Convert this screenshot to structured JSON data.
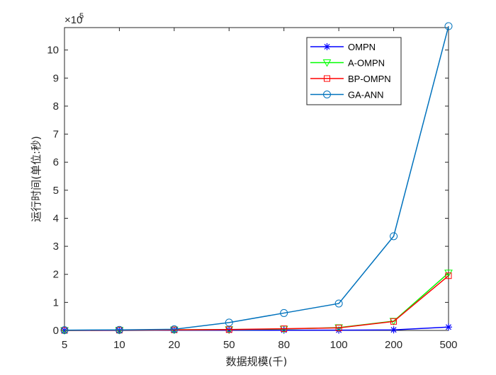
{
  "chart_data": {
    "type": "line",
    "title": "",
    "xlabel": "数据规模(千)",
    "ylabel": "运行时间(单位:秒)",
    "exponent_label": "×10",
    "exponent_power": "5",
    "categories": [
      "5",
      "10",
      "20",
      "50",
      "80",
      "100",
      "200",
      "500"
    ],
    "ylim": [
      0,
      10.8
    ],
    "yticks": [
      "0",
      "1",
      "2",
      "3",
      "4",
      "5",
      "6",
      "7",
      "8",
      "9",
      "10"
    ],
    "y_scale_note": "values in units of 10^5 seconds",
    "grid": false,
    "legend_position": "top-right",
    "series": [
      {
        "name": "OMPN",
        "color": "#0000ff",
        "marker": "star",
        "values": [
          0.0,
          0.0,
          0.01,
          0.01,
          0.01,
          0.01,
          0.02,
          0.12
        ]
      },
      {
        "name": "A-OMPN",
        "color": "#00ff00",
        "marker": "triangle-down",
        "values": [
          0.0,
          0.01,
          0.02,
          0.03,
          0.05,
          0.1,
          0.33,
          2.05
        ]
      },
      {
        "name": "BP-OMPN",
        "color": "#ff0000",
        "marker": "square",
        "values": [
          0.0,
          0.01,
          0.02,
          0.03,
          0.06,
          0.09,
          0.32,
          1.95
        ]
      },
      {
        "name": "GA-ANN",
        "color": "#0072bd",
        "marker": "circle",
        "values": [
          0.01,
          0.02,
          0.04,
          0.28,
          0.62,
          0.96,
          3.36,
          10.85
        ]
      }
    ]
  }
}
